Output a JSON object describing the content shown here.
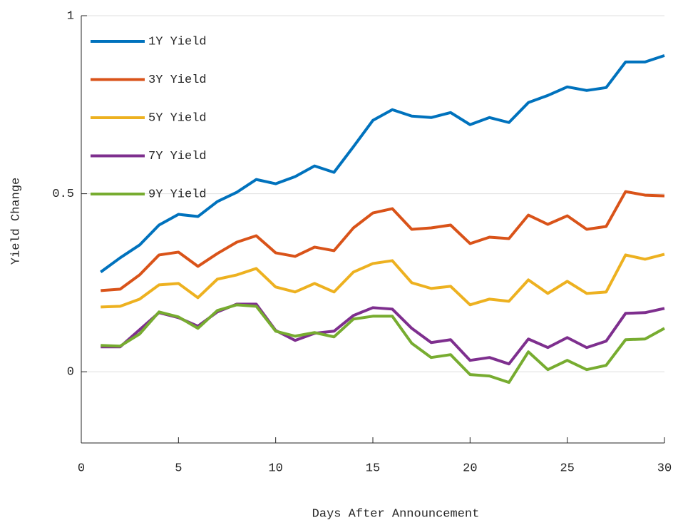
{
  "chart_data": {
    "type": "line",
    "x_label": "Days After Announcement",
    "y_label": "Yield Change",
    "x": [
      1,
      2,
      3,
      4,
      5,
      6,
      7,
      8,
      9,
      10,
      11,
      12,
      13,
      14,
      15,
      16,
      17,
      18,
      19,
      20,
      21,
      22,
      23,
      24,
      25,
      26,
      27,
      28,
      29,
      30
    ],
    "series": [
      {
        "name": "1Y Yield",
        "color": "#0072BD",
        "values": [
          0.28,
          0.32,
          0.356,
          0.412,
          0.442,
          0.436,
          0.478,
          0.504,
          0.54,
          0.528,
          0.548,
          0.578,
          0.56,
          0.632,
          0.706,
          0.736,
          0.718,
          0.714,
          0.728,
          0.694,
          0.714,
          0.7,
          0.756,
          0.776,
          0.8,
          0.79,
          0.798,
          0.87,
          0.87,
          0.888
        ]
      },
      {
        "name": "3Y Yield",
        "color": "#D95319",
        "values": [
          0.228,
          0.232,
          0.272,
          0.328,
          0.336,
          0.296,
          0.332,
          0.364,
          0.382,
          0.334,
          0.324,
          0.35,
          0.34,
          0.404,
          0.446,
          0.458,
          0.4,
          0.404,
          0.412,
          0.36,
          0.378,
          0.374,
          0.44,
          0.414,
          0.438,
          0.4,
          0.408,
          0.506,
          0.496,
          0.494
        ]
      },
      {
        "name": "5Y Yield",
        "color": "#EDB120",
        "values": [
          0.182,
          0.184,
          0.204,
          0.244,
          0.248,
          0.208,
          0.26,
          0.272,
          0.29,
          0.238,
          0.224,
          0.248,
          0.224,
          0.28,
          0.304,
          0.312,
          0.25,
          0.234,
          0.24,
          0.188,
          0.204,
          0.198,
          0.258,
          0.22,
          0.254,
          0.22,
          0.224,
          0.328,
          0.316,
          0.33
        ]
      },
      {
        "name": "7Y Yield",
        "color": "#7E2F8E",
        "values": [
          0.07,
          0.07,
          0.118,
          0.166,
          0.152,
          0.128,
          0.168,
          0.19,
          0.19,
          0.116,
          0.088,
          0.108,
          0.114,
          0.158,
          0.18,
          0.176,
          0.122,
          0.082,
          0.09,
          0.032,
          0.04,
          0.022,
          0.092,
          0.068,
          0.096,
          0.068,
          0.086,
          0.164,
          0.166,
          0.178
        ]
      },
      {
        "name": "9Y Yield",
        "color": "#77AC30",
        "values": [
          0.074,
          0.072,
          0.106,
          0.168,
          0.154,
          0.122,
          0.172,
          0.188,
          0.184,
          0.114,
          0.1,
          0.11,
          0.098,
          0.148,
          0.156,
          0.156,
          0.08,
          0.04,
          0.048,
          -0.008,
          -0.012,
          -0.03,
          0.056,
          0.006,
          0.032,
          0.006,
          0.018,
          0.09,
          0.092,
          0.122
        ]
      }
    ],
    "xlim": [
      0,
      30
    ],
    "xticks": [
      0,
      5,
      10,
      15,
      20,
      25,
      30
    ],
    "ylim": [
      -0.2,
      1
    ],
    "yticks": [
      0,
      0.5,
      1
    ],
    "grid": "y",
    "legend": "northwest"
  }
}
